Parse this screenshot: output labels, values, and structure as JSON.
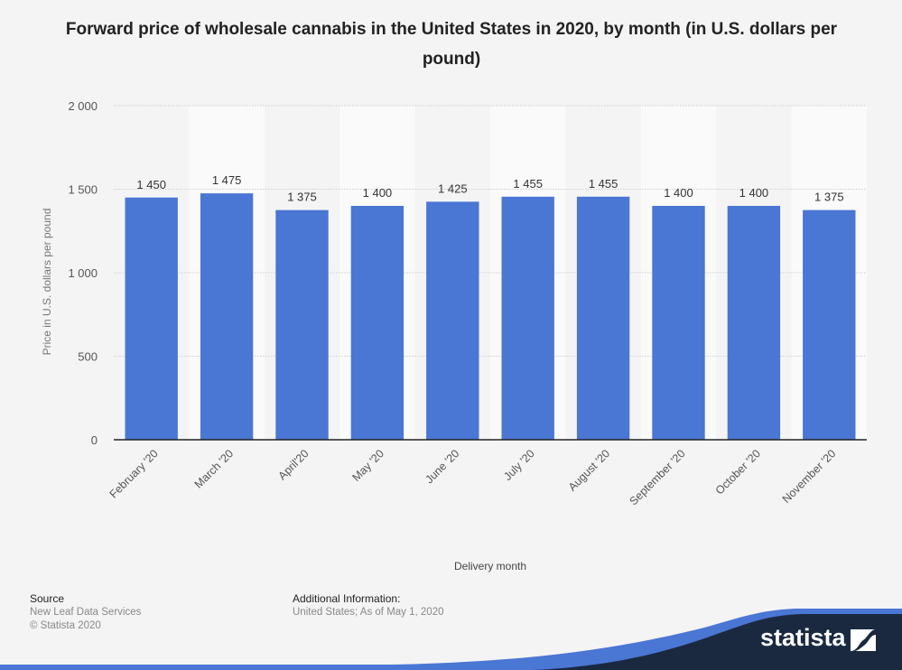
{
  "chart_data": {
    "type": "bar",
    "title": "Forward price of wholesale cannabis in the United States in 2020, by month (in U.S. dollars per pound)",
    "xlabel": "Delivery month",
    "ylabel": "Price in U.S. dollars per pound",
    "categories": [
      "February '20",
      "March '20",
      "April'20",
      "May '20",
      "June '20",
      "July '20",
      "August '20",
      "September '20",
      "October '20",
      "November '20"
    ],
    "values": [
      1450,
      1475,
      1375,
      1400,
      1425,
      1455,
      1455,
      1400,
      1400,
      1375
    ],
    "value_labels": [
      "1 450",
      "1 475",
      "1 375",
      "1 400",
      "1 425",
      "1 455",
      "1 455",
      "1 400",
      "1 400",
      "1 375"
    ],
    "ylim": [
      0,
      2000
    ],
    "yticks": [
      0,
      500,
      1000,
      1500,
      2000
    ],
    "ytick_labels": [
      "0",
      "500",
      "1 000",
      "1 500",
      "2 000"
    ],
    "grid": true,
    "legend": "none",
    "bar_color": "#4a76d4"
  },
  "footer": {
    "source_heading": "Source",
    "source_lines": [
      "New Leaf Data Services",
      "© Statista 2020"
    ],
    "additional_heading": "Additional Information:",
    "additional_text": "United States; As of May 1, 2020"
  },
  "brand": {
    "name": "statista",
    "dark_color": "#1a2940",
    "accent_color": "#4a76d4"
  }
}
